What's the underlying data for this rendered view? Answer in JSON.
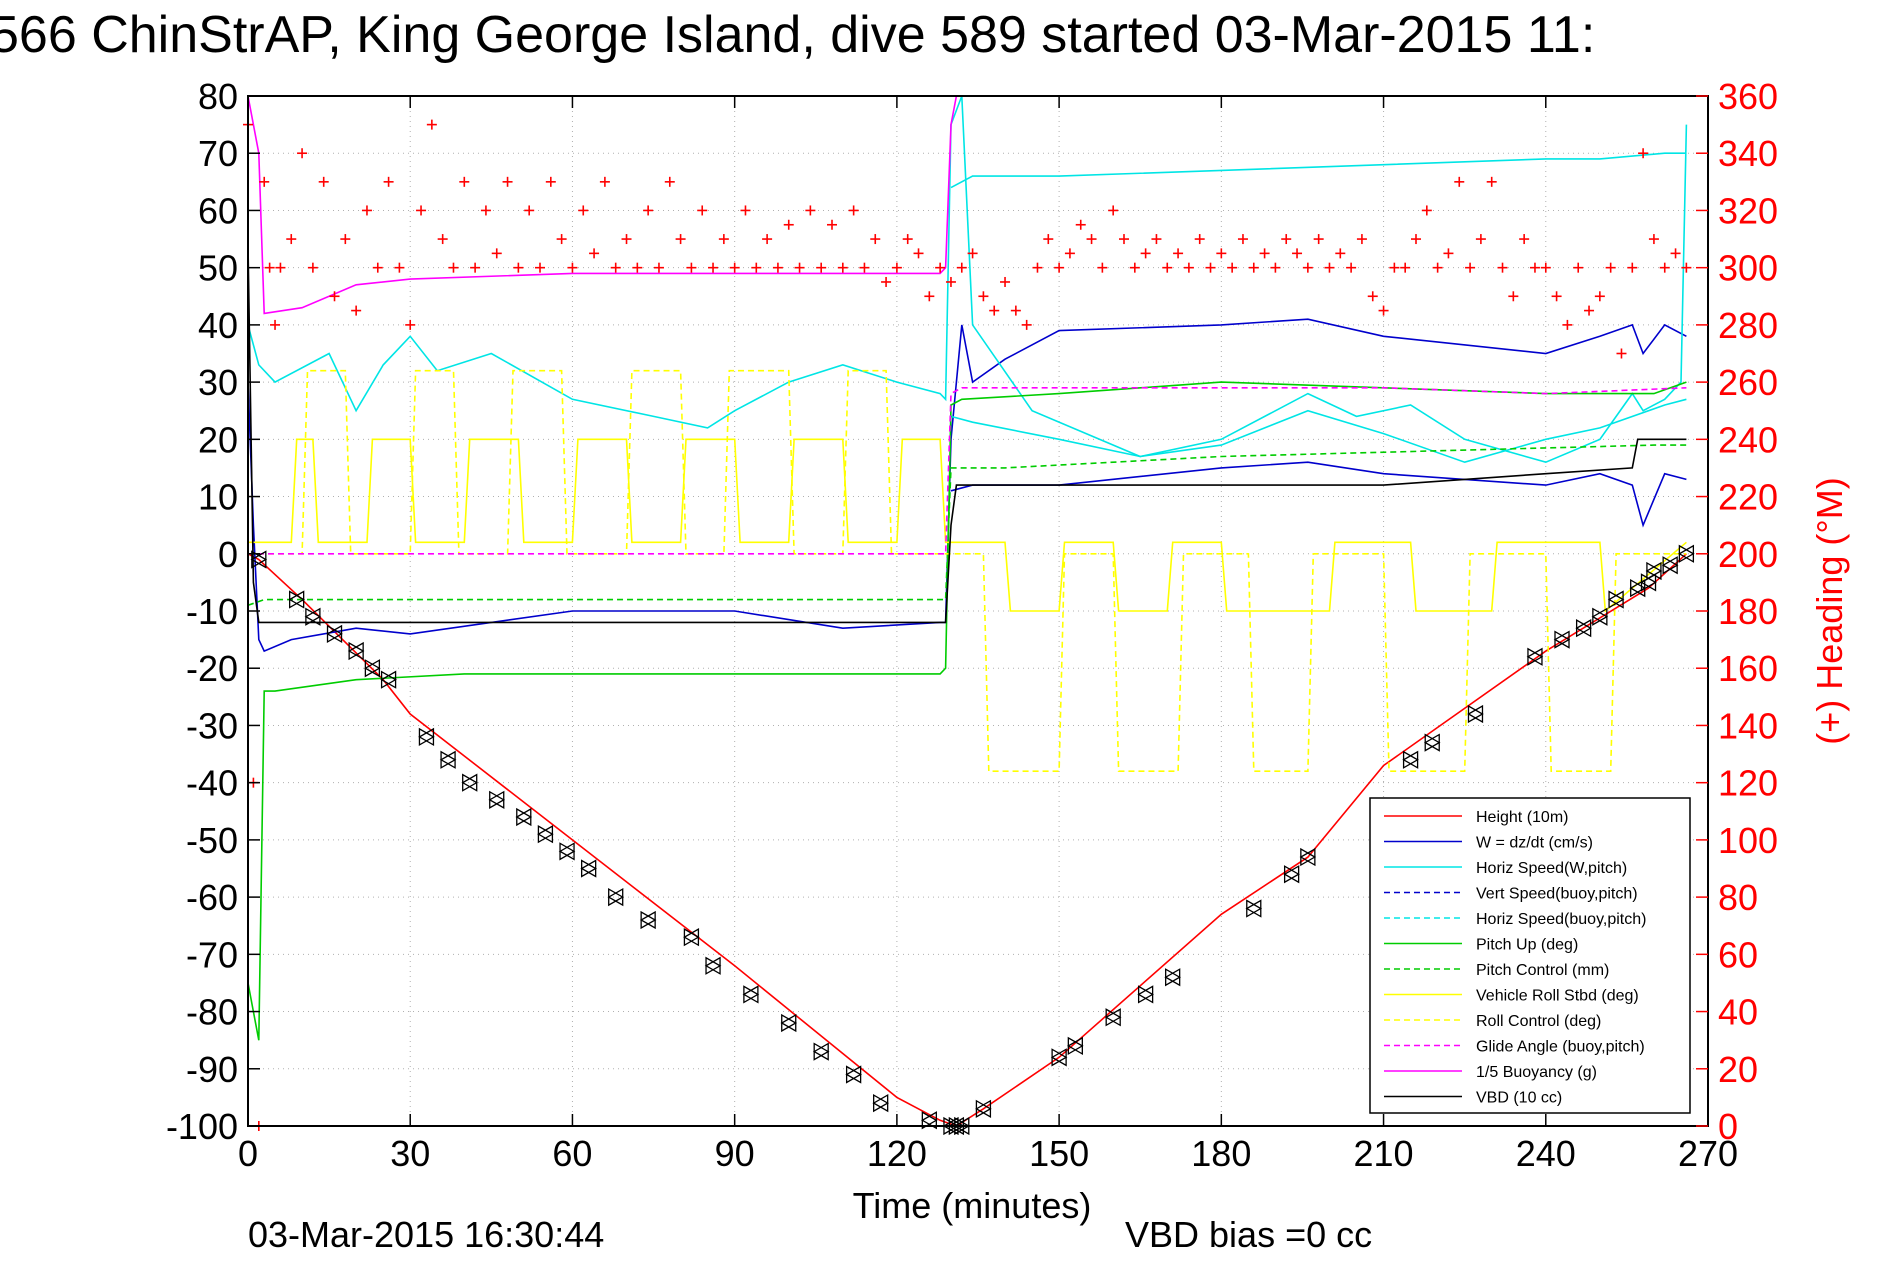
{
  "chart_data": {
    "type": "line",
    "title": "566 ChinStrAP, King George Island, dive 589 started 03-Mar-2015 11:",
    "xlabel": "Time (minutes)",
    "ylabel_right": "(+) Heading (°M)",
    "footer_left": "03-Mar-2015 16:30:44",
    "footer_right": "VBD bias =0 cc",
    "xlim": [
      0,
      270
    ],
    "ylim": [
      -100,
      80
    ],
    "ylim_right": [
      0,
      360
    ],
    "x_ticks": [
      "0",
      "30",
      "60",
      "90",
      "120",
      "150",
      "180",
      "210",
      "240",
      "270"
    ],
    "y_ticks": [
      "80",
      "70",
      "60",
      "50",
      "40",
      "30",
      "20",
      "10",
      "0",
      "-10",
      "-20",
      "-30",
      "-40",
      "-50",
      "-60",
      "-70",
      "-80",
      "-90",
      "-100"
    ],
    "y_right_ticks": [
      "360",
      "340",
      "320",
      "300",
      "280",
      "260",
      "240",
      "220",
      "200",
      "180",
      "160",
      "140",
      "120",
      "100",
      "80",
      "60",
      "40",
      "20",
      "0"
    ],
    "grid": true,
    "legend_position": "bottom-right",
    "colors": {
      "height": "#ff0000",
      "w": "#0000cc",
      "horiz": "#00e5e5",
      "pitch": "#00cc00",
      "roll": "#ffff00",
      "glide": "#ff00ff",
      "buoy": "#ff00ff",
      "vbd": "#000000",
      "heading": "#ff0000"
    },
    "legend": [
      {
        "name": "Height (10m)",
        "color": "#ff0000",
        "style": "solid"
      },
      {
        "name": "W = dz/dt (cm/s)",
        "color": "#0000cc",
        "style": "solid"
      },
      {
        "name": "Horiz Speed(W,pitch)",
        "color": "#00e5e5",
        "style": "solid"
      },
      {
        "name": "Vert Speed(buoy,pitch)",
        "color": "#0000cc",
        "style": "dashed"
      },
      {
        "name": "Horiz Speed(buoy,pitch)",
        "color": "#00e5e5",
        "style": "dashed"
      },
      {
        "name": "Pitch Up (deg)",
        "color": "#00cc00",
        "style": "solid"
      },
      {
        "name": "Pitch Control (mm)",
        "color": "#00cc00",
        "style": "dashed"
      },
      {
        "name": "Vehicle Roll Stbd (deg)",
        "color": "#ffff00",
        "style": "solid"
      },
      {
        "name": "Roll Control (deg)",
        "color": "#ffff00",
        "style": "dashed"
      },
      {
        "name": "Glide Angle (buoy,pitch)",
        "color": "#ff00ff",
        "style": "dashed"
      },
      {
        "name": "1/5 Buoyancy (g)",
        "color": "#ff00ff",
        "style": "solid"
      },
      {
        "name": "VBD (10 cc)",
        "color": "#000000",
        "style": "solid"
      }
    ],
    "series": [
      {
        "key": "height",
        "color": "#ff0000",
        "dash": "",
        "x": [
          0,
          2,
          10,
          25,
          30,
          60,
          90,
          120,
          128,
          131,
          136,
          150,
          180,
          196,
          210,
          240,
          259,
          266
        ],
        "y": [
          0,
          -1,
          -8,
          -22,
          -28,
          -50,
          -72,
          -95,
          -99,
          -100,
          -97,
          -88,
          -63,
          -53,
          -37,
          -17,
          -6,
          0
        ]
      },
      {
        "key": "descent-markers",
        "color": "#000000",
        "marker": "triangle",
        "x": [
          2,
          9,
          12,
          16,
          20,
          23,
          26,
          33,
          37,
          41,
          46,
          51,
          55,
          59,
          63,
          68,
          74,
          82,
          86,
          93,
          100,
          106,
          112,
          117,
          126,
          130,
          131,
          132,
          136,
          150,
          153,
          160,
          166,
          171,
          186,
          193,
          196,
          215,
          219,
          227,
          238,
          243,
          247,
          250,
          253,
          257,
          259,
          260,
          263,
          266
        ],
        "y": [
          -1,
          -8,
          -11,
          -14,
          -17,
          -20,
          -22,
          -32,
          -36,
          -40,
          -43,
          -46,
          -49,
          -52,
          -55,
          -60,
          -64,
          -67,
          -72,
          -77,
          -82,
          -87,
          -91,
          -96,
          -99,
          -100,
          -100,
          -100,
          -97,
          -88,
          -86,
          -81,
          -77,
          -74,
          -62,
          -56,
          -53,
          -36,
          -33,
          -28,
          -18,
          -15,
          -13,
          -11,
          -8,
          -6,
          -5,
          -3,
          -2,
          0
        ]
      },
      {
        "key": "w",
        "color": "#0000cc",
        "dash": "",
        "x": [
          0,
          1,
          2,
          3,
          8,
          20,
          30,
          60,
          90,
          110,
          128,
          129,
          130,
          132,
          134,
          140,
          150,
          180,
          196,
          210,
          240,
          250,
          256,
          258,
          262,
          266
        ],
        "y": [
          30,
          5,
          -15,
          -17,
          -15,
          -13,
          -14,
          -10,
          -10,
          -13,
          -12,
          -12,
          20,
          40,
          30,
          34,
          39,
          40,
          41,
          38,
          35,
          38,
          40,
          35,
          40,
          38
        ]
      },
      {
        "key": "w-lower",
        "color": "#0000cc",
        "dash": "",
        "x": [
          130,
          134,
          150,
          180,
          196,
          210,
          240,
          250,
          256,
          258,
          262,
          266
        ],
        "y": [
          11,
          12,
          12,
          15,
          16,
          14,
          12,
          14,
          12,
          5,
          14,
          13
        ]
      },
      {
        "key": "horiz",
        "color": "#00e5e5",
        "dash": "",
        "x": [
          0,
          2,
          5,
          15,
          20,
          25,
          30,
          35,
          45,
          60,
          75,
          85,
          90,
          100,
          110,
          120,
          128,
          129,
          130,
          132,
          134,
          145,
          165,
          180,
          196,
          205,
          215,
          225,
          240,
          250,
          256,
          258,
          262,
          265,
          266
        ],
        "y": [
          40,
          33,
          30,
          35,
          25,
          33,
          38,
          32,
          35,
          27,
          24,
          22,
          25,
          30,
          33,
          30,
          28,
          27,
          75,
          80,
          40,
          25,
          17,
          20,
          28,
          24,
          26,
          20,
          16,
          20,
          28,
          25,
          27,
          30,
          75
        ]
      },
      {
        "key": "horiz-upper",
        "color": "#00e5e5",
        "dash": "",
        "x": [
          130,
          134,
          150,
          180,
          210,
          240,
          250,
          262,
          266
        ],
        "y": [
          64,
          66,
          66,
          67,
          68,
          69,
          69,
          70,
          70
        ]
      },
      {
        "key": "horiz-lower",
        "color": "#00e5e5",
        "dash": "",
        "x": [
          130,
          134,
          150,
          165,
          180,
          196,
          210,
          225,
          240,
          250,
          262,
          266
        ],
        "y": [
          24,
          23,
          20,
          17,
          19,
          25,
          21,
          16,
          20,
          22,
          26,
          27
        ]
      },
      {
        "key": "pitch",
        "color": "#00cc00",
        "dash": "",
        "x": [
          0,
          1,
          2,
          3,
          5,
          20,
          40,
          60,
          90,
          120,
          128,
          129,
          130,
          132,
          150,
          180,
          210,
          240,
          260,
          266
        ],
        "y": [
          -75,
          -80,
          -85,
          -24,
          -24,
          -22,
          -21,
          -21,
          -21,
          -21,
          -21,
          -20,
          26,
          27,
          28,
          30,
          29,
          28,
          28,
          30
        ]
      },
      {
        "key": "pitch-control",
        "color": "#00cc00",
        "dash": "6,4",
        "x": [
          0,
          3,
          20,
          60,
          120,
          129,
          130,
          140,
          180,
          220,
          260,
          266
        ],
        "y": [
          -9,
          -8,
          -8,
          -8,
          -8,
          -8,
          15,
          15,
          17,
          18,
          19,
          19
        ]
      },
      {
        "key": "roll",
        "color": "#ffff00",
        "dash": "",
        "x": [
          0,
          5,
          8,
          9,
          12,
          13,
          22,
          23,
          30,
          31,
          40,
          41,
          50,
          51,
          60,
          61,
          70,
          71,
          80,
          81,
          90,
          91,
          100,
          101,
          110,
          111,
          120,
          121,
          128,
          129,
          140,
          141,
          150,
          151,
          160,
          161,
          170,
          171,
          180,
          181,
          200,
          201,
          215,
          216,
          230,
          231,
          250,
          251,
          266
        ],
        "y": [
          2,
          2,
          2,
          20,
          20,
          2,
          2,
          20,
          20,
          2,
          2,
          20,
          20,
          2,
          2,
          20,
          20,
          2,
          2,
          20,
          20,
          2,
          2,
          20,
          20,
          2,
          2,
          20,
          20,
          2,
          2,
          -10,
          -10,
          2,
          2,
          -10,
          -10,
          2,
          2,
          -10,
          -10,
          2,
          2,
          -10,
          -10,
          2,
          2,
          -10,
          2
        ]
      },
      {
        "key": "roll-control",
        "color": "#ffff00",
        "dash": "6,4",
        "x": [
          0,
          10,
          11,
          18,
          19,
          30,
          31,
          38,
          39,
          48,
          49,
          58,
          59,
          70,
          71,
          80,
          81,
          88,
          89,
          100,
          101,
          110,
          111,
          118,
          119,
          128,
          129,
          136,
          137,
          150,
          151,
          160,
          161,
          172,
          173,
          185,
          186,
          196,
          197,
          210,
          211,
          225,
          226,
          240,
          241,
          252,
          253,
          266
        ],
        "y": [
          0,
          0,
          32,
          32,
          0,
          0,
          32,
          32,
          0,
          0,
          32,
          32,
          0,
          0,
          32,
          32,
          0,
          0,
          32,
          32,
          0,
          0,
          32,
          32,
          0,
          0,
          0,
          0,
          -38,
          -38,
          0,
          0,
          -38,
          -38,
          0,
          0,
          -38,
          -38,
          0,
          0,
          -38,
          -38,
          0,
          0,
          -38,
          -38,
          0,
          0
        ]
      },
      {
        "key": "glide",
        "color": "#ff00ff",
        "dash": "6,4",
        "x": [
          0,
          2,
          10,
          60,
          120,
          129,
          130,
          132,
          150,
          180,
          210,
          240,
          266
        ],
        "y": [
          0,
          0,
          0,
          0,
          0,
          0,
          28,
          29,
          29,
          29,
          29,
          28,
          29
        ]
      },
      {
        "key": "buoyancy",
        "color": "#ff00ff",
        "dash": "",
        "x": [
          0,
          2,
          3,
          10,
          20,
          30,
          60,
          90,
          120,
          128,
          129,
          130,
          131
        ],
        "y": [
          80,
          70,
          42,
          43,
          47,
          48,
          49,
          49,
          49,
          49,
          50,
          75,
          80
        ]
      },
      {
        "key": "vbd",
        "color": "#000000",
        "dash": "",
        "x": [
          0,
          1,
          2,
          10,
          30,
          60,
          90,
          120,
          128,
          129,
          130,
          131,
          140,
          180,
          210,
          240,
          256,
          257,
          266
        ],
        "y": [
          54,
          -5,
          -12,
          -12,
          -12,
          -12,
          -12,
          -12,
          -12,
          -12,
          5,
          12,
          12,
          12,
          12,
          14,
          15,
          20,
          20
        ]
      }
    ],
    "heading": {
      "color": "#ff0000",
      "marker": "plus",
      "y_axis": "right",
      "x": [
        0,
        1,
        2,
        3,
        4,
        5,
        6,
        8,
        10,
        12,
        14,
        16,
        18,
        20,
        22,
        24,
        26,
        28,
        30,
        32,
        34,
        36,
        38,
        40,
        42,
        44,
        46,
        48,
        50,
        52,
        54,
        56,
        58,
        60,
        62,
        64,
        66,
        68,
        70,
        72,
        74,
        76,
        78,
        80,
        82,
        84,
        86,
        88,
        90,
        92,
        94,
        96,
        98,
        100,
        102,
        104,
        106,
        108,
        110,
        112,
        114,
        116,
        118,
        120,
        122,
        124,
        126,
        128,
        130,
        132,
        134,
        136,
        138,
        140,
        142,
        144,
        146,
        148,
        150,
        152,
        154,
        156,
        158,
        160,
        162,
        164,
        166,
        168,
        170,
        172,
        174,
        176,
        178,
        180,
        182,
        184,
        186,
        188,
        190,
        192,
        194,
        196,
        198,
        200,
        202,
        204,
        206,
        208,
        210,
        212,
        214,
        216,
        218,
        220,
        222,
        224,
        226,
        228,
        230,
        232,
        234,
        236,
        238,
        240,
        242,
        244,
        246,
        248,
        250,
        252,
        254,
        256,
        258,
        260,
        262,
        264,
        266
      ],
      "y": [
        350,
        120,
        0,
        330,
        300,
        280,
        300,
        310,
        340,
        300,
        330,
        290,
        310,
        285,
        320,
        300,
        330,
        300,
        280,
        320,
        350,
        310,
        300,
        330,
        300,
        320,
        305,
        330,
        300,
        320,
        300,
        330,
        310,
        300,
        320,
        305,
        330,
        300,
        310,
        300,
        320,
        300,
        330,
        310,
        300,
        320,
        300,
        310,
        300,
        320,
        300,
        310,
        300,
        315,
        300,
        320,
        300,
        315,
        300,
        320,
        300,
        310,
        295,
        300,
        310,
        305,
        290,
        300,
        295,
        300,
        305,
        290,
        285,
        295,
        285,
        280,
        300,
        310,
        300,
        305,
        315,
        310,
        300,
        320,
        310,
        300,
        305,
        310,
        300,
        305,
        300,
        310,
        300,
        305,
        300,
        310,
        300,
        305,
        300,
        310,
        305,
        300,
        310,
        300,
        305,
        300,
        310,
        290,
        285,
        300,
        300,
        310,
        320,
        300,
        305,
        330,
        300,
        310,
        330,
        300,
        290,
        310,
        300,
        300,
        290,
        280,
        300,
        285,
        290,
        300,
        270,
        300,
        340,
        310,
        300,
        305,
        300
      ]
    }
  }
}
